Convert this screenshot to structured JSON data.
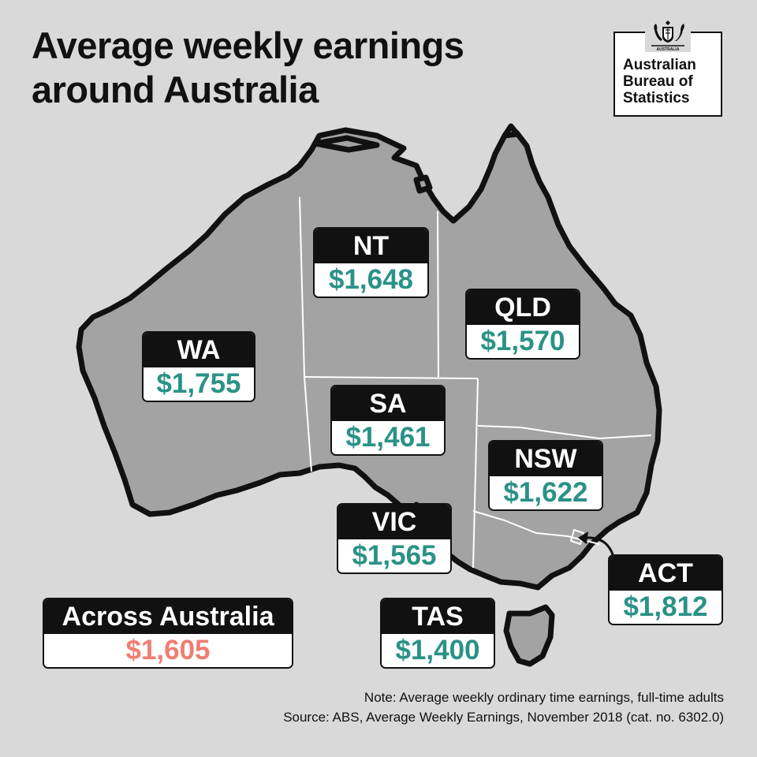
{
  "title": {
    "line1": "Average weekly earnings",
    "line2": "around Australia"
  },
  "logo": {
    "line1": "Australian",
    "line2": "Bureau of",
    "line3": "Statistics",
    "crest_text": "AUSTRALIA"
  },
  "regions": [
    {
      "code": "WA",
      "earnings": "$1,755"
    },
    {
      "code": "NT",
      "earnings": "$1,648"
    },
    {
      "code": "QLD",
      "earnings": "$1,570"
    },
    {
      "code": "SA",
      "earnings": "$1,461"
    },
    {
      "code": "NSW",
      "earnings": "$1,622"
    },
    {
      "code": "VIC",
      "earnings": "$1,565"
    },
    {
      "code": "ACT",
      "earnings": "$1,812"
    },
    {
      "code": "TAS",
      "earnings": "$1,400"
    }
  ],
  "national": {
    "label": "Across Australia",
    "earnings": "$1,605"
  },
  "note": {
    "line1": "Note: Average weekly ordinary time earnings, full-time adults",
    "line2": "Source: ABS, Average Weekly Earnings, November 2018 (cat. no. 6302.0)"
  },
  "colors": {
    "land": "#a3a3a3",
    "border": "#111111",
    "value": "#2a9286",
    "national_value": "#f07e72",
    "background": "#d9d9d9"
  }
}
